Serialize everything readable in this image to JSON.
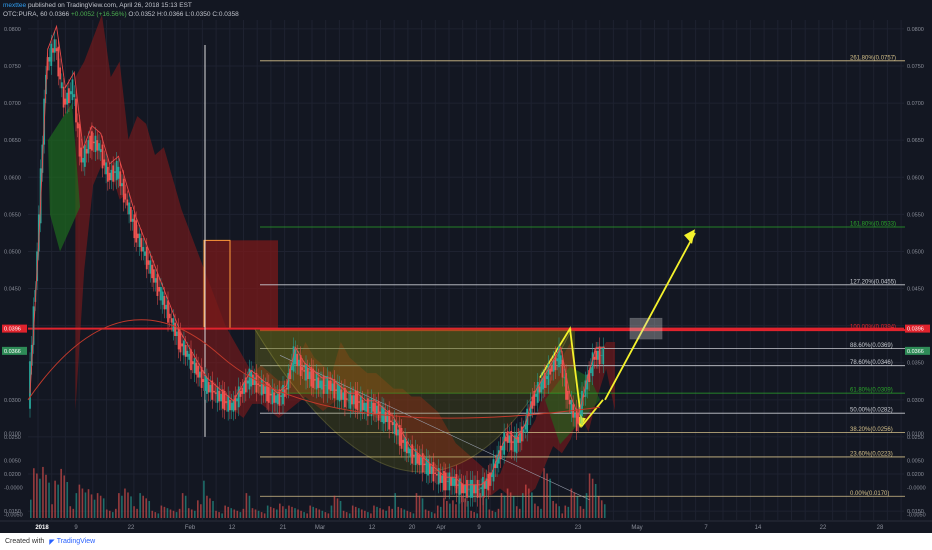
{
  "header": {
    "user": "mexttee",
    "published": "published on TradingView.com, April 26, 2018 15:13 EST",
    "symbol": "OTC:PURA, 60",
    "last": "0.0366",
    "change": "+0.0052 (+16.56%)",
    "open": "O:0.0352",
    "high": "H:0.0366",
    "low": "L:0.0350",
    "close": "C:0.0358"
  },
  "footer": {
    "created": "Created with",
    "brand": "TradingView"
  },
  "colors": {
    "background": "#131722",
    "up": "#26a69a",
    "down": "#ef5350",
    "fib": "#d4c08a",
    "fib_green": "#2aa52a",
    "fib_red": "#e0232d",
    "arrow": "#f4f22c"
  },
  "chart_data": {
    "type": "candlestick",
    "symbol": "OTC:PURA",
    "interval": "60",
    "y_axis_left": [
      "0.0800",
      "0.0750",
      "0.0700",
      "0.0650",
      "0.0600",
      "0.0550",
      "0.0500",
      "0.0450",
      "0.0396",
      "0.0366",
      "0.0300",
      "0.0250",
      "0.0200",
      "0.0150",
      "0.0100",
      "0.0050",
      "-0.0000",
      "-0.0050"
    ],
    "y_axis_right": [
      "0.0800",
      "0.0750",
      "0.0700",
      "0.0650",
      "0.0600",
      "0.0550",
      "0.0500",
      "0.0450",
      "0.0396",
      "0.0366",
      "0.0350",
      "0.0300",
      "0.0250",
      "0.0200",
      "0.0150",
      "0.0100",
      "0.0050",
      "-0.0000",
      "-0.0050"
    ],
    "ylim": [
      0.0138,
      0.0812
    ],
    "x_ticks": [
      "2018",
      "9",
      "22",
      "Feb",
      "12",
      "21",
      "Mar",
      "12",
      "20",
      "Apr",
      "9",
      "23",
      "May",
      "7",
      "14",
      "22",
      "28"
    ],
    "price_labels": {
      "last": "0.0396",
      "current": "0.0366"
    },
    "fib_levels": [
      {
        "label": "261.80%(0.0757)",
        "value": 0.0757
      },
      {
        "label": "161.80%(0.0533)",
        "value": 0.0533
      },
      {
        "label": "127.20%(0.0455)",
        "value": 0.0455
      },
      {
        "label": "100.00%(0.0394)",
        "value": 0.0394
      },
      {
        "label": "88.60%(0.0369)",
        "value": 0.0369
      },
      {
        "label": "78.60%(0.0346)",
        "value": 0.0346
      },
      {
        "label": "61.80%(0.0309)",
        "value": 0.0309
      },
      {
        "label": "50.00%(0.0282)",
        "value": 0.0282
      },
      {
        "label": "38.20%(0.0256)",
        "value": 0.0256
      },
      {
        "label": "23.60%(0.0223)",
        "value": 0.0223
      },
      {
        "label": "0.00%(0.0170)",
        "value": 0.017
      }
    ],
    "price_path": [
      0.03,
      0.05,
      0.075,
      0.078,
      0.07,
      0.072,
      0.062,
      0.065,
      0.064,
      0.06,
      0.061,
      0.057,
      0.053,
      0.05,
      0.047,
      0.044,
      0.041,
      0.038,
      0.036,
      0.034,
      0.032,
      0.031,
      0.03,
      0.029,
      0.031,
      0.033,
      0.032,
      0.031,
      0.03,
      0.031,
      0.036,
      0.034,
      0.033,
      0.032,
      0.032,
      0.031,
      0.03,
      0.03,
      0.029,
      0.029,
      0.028,
      0.027,
      0.025,
      0.023,
      0.022,
      0.021,
      0.02,
      0.019,
      0.019,
      0.018,
      0.018,
      0.018,
      0.019,
      0.022,
      0.025,
      0.024,
      0.026,
      0.03,
      0.032,
      0.034,
      0.036,
      0.03,
      0.027,
      0.032,
      0.036,
      0.036
    ],
    "volume_path": [
      0.004,
      0.006,
      0.003,
      0.005,
      0.002,
      0.003,
      0.004,
      0.002,
      0.001,
      0.002,
      0.003,
      0.002,
      0.002,
      0.001,
      0.001,
      0.001,
      0.002,
      0.001,
      0.003,
      0.002,
      0.001,
      0.001,
      0.001,
      0.002,
      0.001,
      0.001,
      0.001,
      0.002,
      0.001,
      0.001,
      0.001,
      0.001,
      0.001,
      0.002,
      0.001,
      0.001,
      0.001,
      0.001,
      0.001,
      0.002,
      0.001,
      0.001,
      0.002,
      0.001,
      0.001,
      0.002,
      0.003,
      0.002,
      0.001,
      0.002,
      0.001,
      0.002,
      0.003,
      0.002,
      0.003,
      0.002,
      0.004,
      0.002,
      0.001,
      0.003,
      0.002,
      0.004,
      0.003
    ]
  }
}
